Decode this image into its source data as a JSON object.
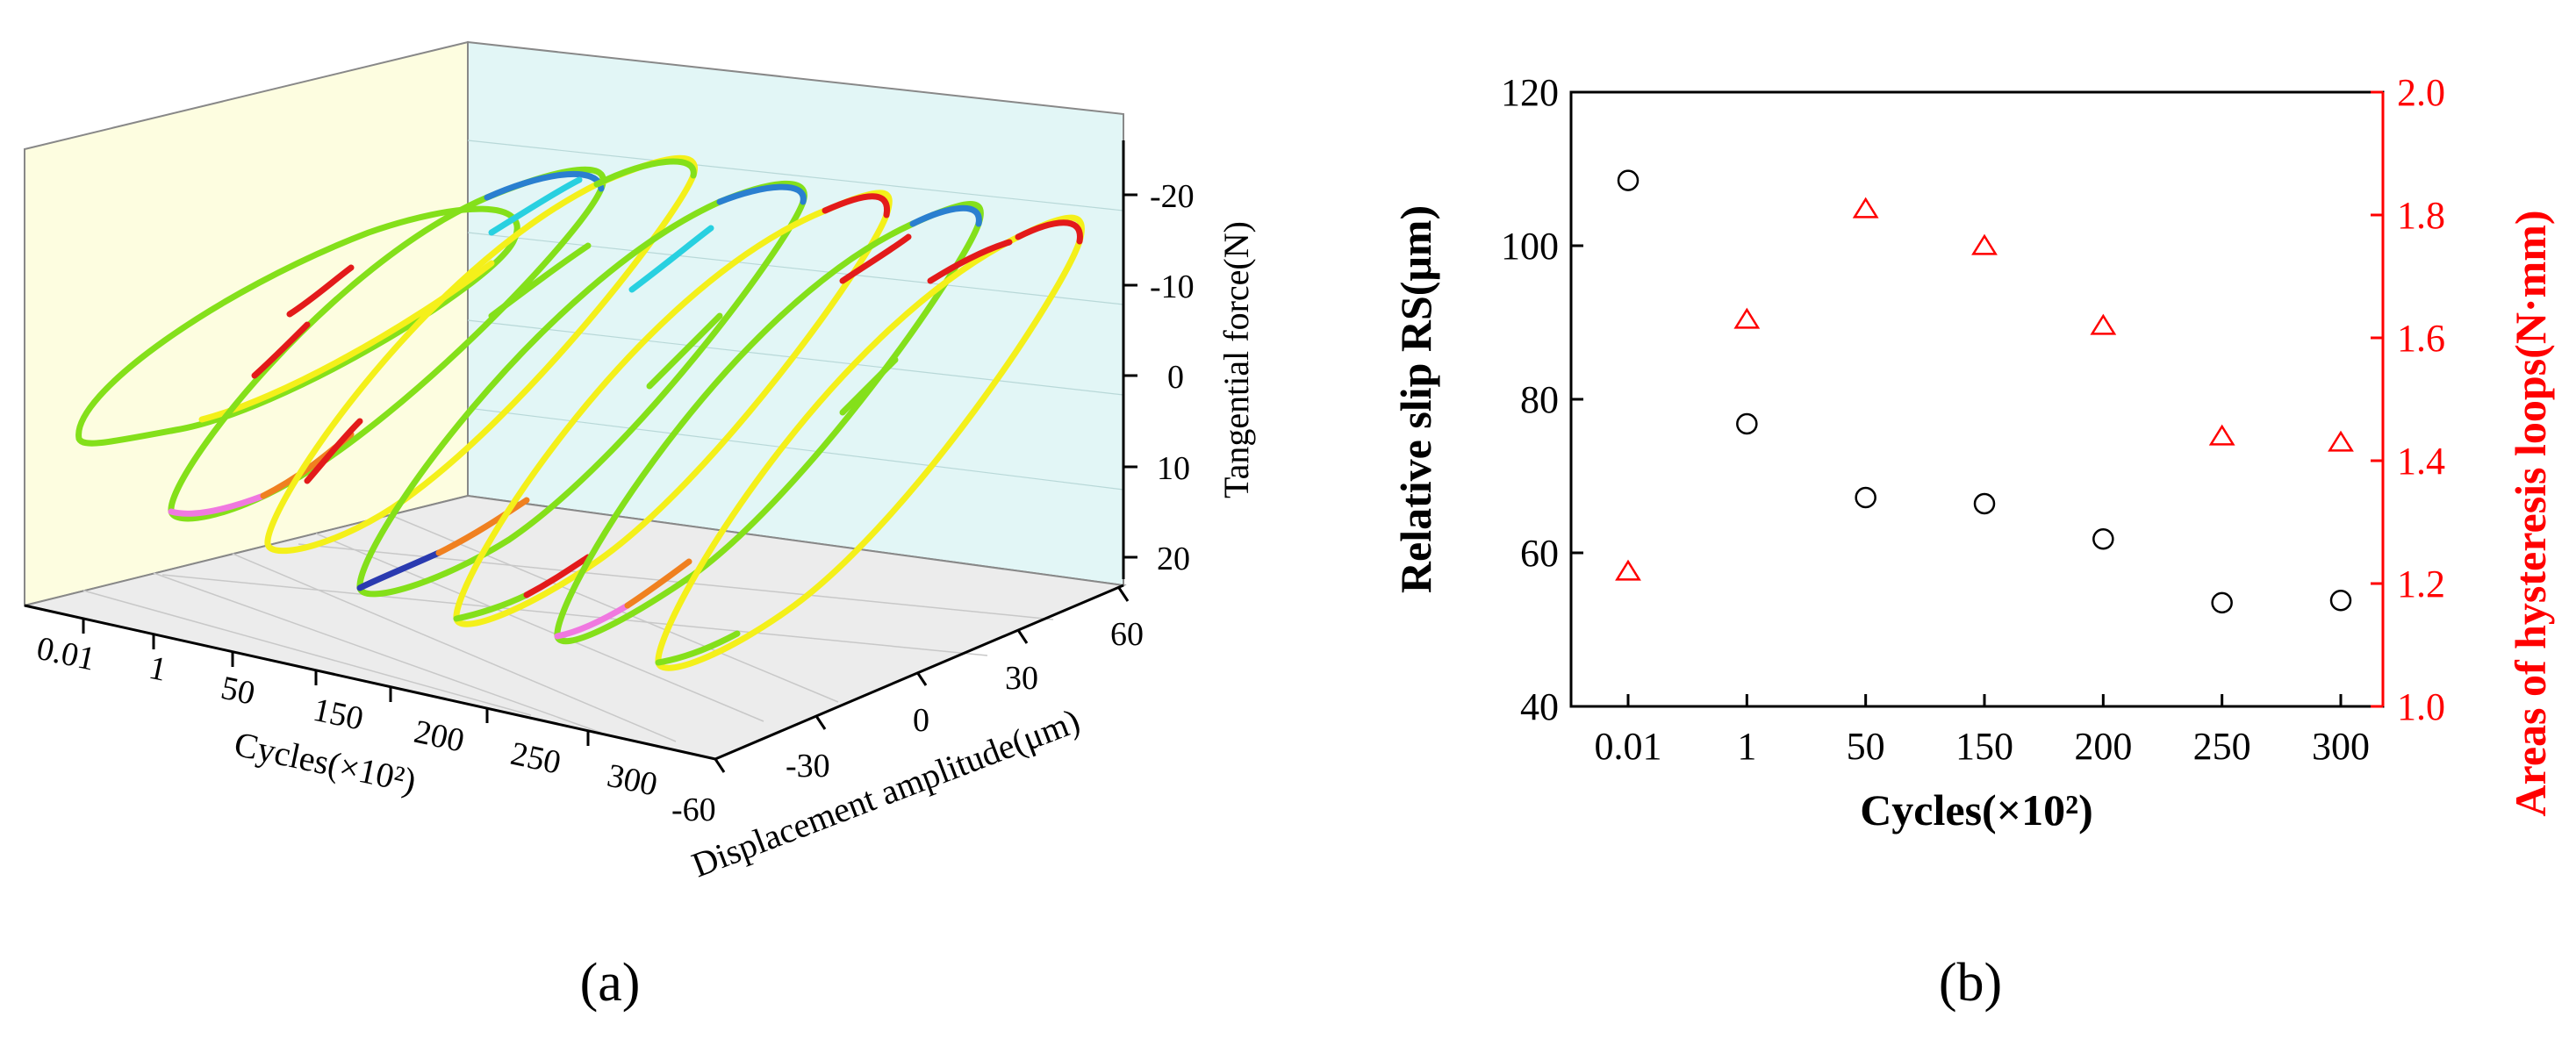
{
  "colors": {
    "axis": "#000000",
    "secondary": "#ff0000",
    "wall_left": "#fdfde0",
    "wall_back": "#e2f6f6",
    "floor": "#ececec"
  },
  "panel_a": {
    "label": "(a)",
    "x_axis_label": "Cycles(×10²)",
    "y_axis_label": "Displacement amplitude(μm)",
    "z_axis_label": "Tangential force(N)",
    "cycle_ticks": [
      "0.01",
      "1",
      "50",
      "150",
      "200",
      "250",
      "300"
    ],
    "displacement_ticks": [
      "-60",
      "-30",
      "0",
      "30",
      "60"
    ],
    "force_ticks": [
      "-20",
      "-10",
      "0",
      "10",
      "20"
    ]
  },
  "chart_data": [
    {
      "type": "scatter",
      "title": "",
      "xlabel": "Cycles(×10²)",
      "ylabel": "Relative slip RS(μm)",
      "y2label": "Areas of hysteresis loops(N·mm)",
      "categories": [
        "0.01",
        "1",
        "50",
        "150",
        "200",
        "250",
        "300"
      ],
      "ylim": [
        40,
        120
      ],
      "y2lim": [
        1.0,
        2.0
      ],
      "yticks": [
        40,
        60,
        80,
        100,
        120
      ],
      "y2ticks": [
        1.0,
        1.2,
        1.4,
        1.6,
        1.8,
        2.0
      ],
      "series": [
        {
          "name": "Relative slip RS",
          "axis": "left",
          "marker": "circle",
          "color": "#000000",
          "values": [
            108.5,
            76.8,
            67.2,
            66.4,
            61.8,
            53.5,
            53.8
          ]
        },
        {
          "name": "Areas of hysteresis loops",
          "axis": "right",
          "marker": "triangle",
          "color": "#ff0000",
          "values": [
            1.22,
            1.63,
            1.81,
            1.75,
            1.62,
            1.44,
            1.43
          ]
        }
      ],
      "panel_label": "(b)"
    }
  ]
}
